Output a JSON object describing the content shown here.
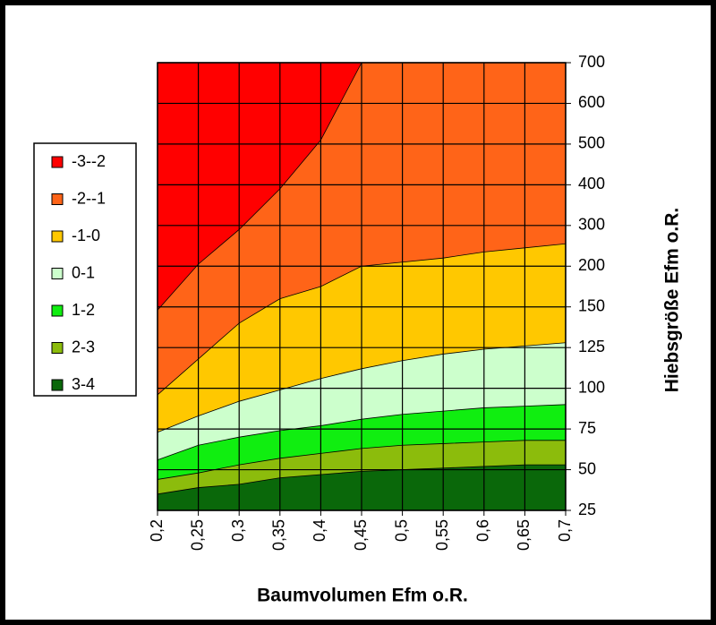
{
  "chart_data": {
    "type": "contour",
    "x_label": "Baumvolumen Efm o.R.",
    "y_label": "Hiebsgröße Efm o.R.",
    "x": [
      0.2,
      0.25,
      0.3,
      0.35,
      0.4,
      0.45,
      0.5,
      0.55,
      0.6,
      0.65,
      0.7
    ],
    "xlim": [
      0.2,
      0.7
    ],
    "xticks": [
      {
        "value": 0.2,
        "label": "0,2"
      },
      {
        "value": 0.25,
        "label": "0,25"
      },
      {
        "value": 0.3,
        "label": "0,3"
      },
      {
        "value": 0.35,
        "label": "0,35"
      },
      {
        "value": 0.4,
        "label": "0,4"
      },
      {
        "value": 0.45,
        "label": "0,45"
      },
      {
        "value": 0.5,
        "label": "0,5"
      },
      {
        "value": 0.55,
        "label": "0,55"
      },
      {
        "value": 0.6,
        "label": "0,6"
      },
      {
        "value": 0.65,
        "label": "0,65"
      },
      {
        "value": 0.7,
        "label": "0,7"
      }
    ],
    "ylim": [
      25,
      700
    ],
    "yticks": [
      25,
      50,
      75,
      100,
      125,
      150,
      200,
      300,
      400,
      500,
      600,
      700
    ],
    "grid": true,
    "legend": "left",
    "series": [
      {
        "name": "3-4",
        "color": "#0a680a",
        "values": [
          35,
          39,
          41,
          45,
          47,
          49,
          50,
          51,
          52,
          53,
          53
        ]
      },
      {
        "name": "2-3",
        "color": "#8cbc0c",
        "values": [
          44,
          48,
          53,
          57,
          60,
          63,
          65,
          66,
          67,
          68,
          68
        ]
      },
      {
        "name": "1-2",
        "color": "#10ee10",
        "values": [
          56,
          65,
          70,
          74,
          77,
          81,
          84,
          86,
          88,
          89,
          90
        ]
      },
      {
        "name": "0-1",
        "color": "#ccffcc",
        "values": [
          73,
          83,
          92,
          99,
          106,
          112,
          117,
          121,
          124,
          126,
          128
        ]
      },
      {
        "name": "-1-0",
        "color": "#ffc800",
        "values": [
          96,
          118,
          140,
          160,
          175,
          200,
          210,
          220,
          235,
          245,
          255
        ]
      },
      {
        "name": "-2--1",
        "color": "#ff6418",
        "values": [
          148,
          205,
          290,
          390,
          510,
          700,
          null,
          null,
          null,
          null,
          null
        ]
      },
      {
        "name": "-3--2",
        "color": "#ff0000"
      }
    ]
  }
}
